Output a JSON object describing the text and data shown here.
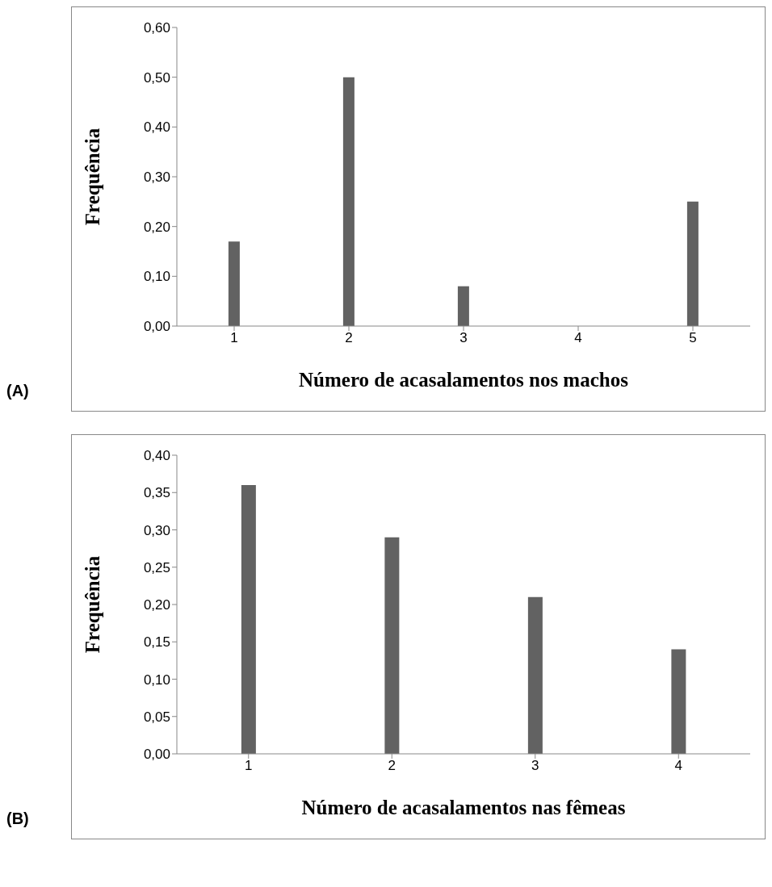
{
  "chart_data": [
    {
      "type": "bar",
      "categories": [
        "1",
        "2",
        "3",
        "4",
        "5"
      ],
      "values": [
        0.17,
        0.5,
        0.08,
        0,
        0.25
      ],
      "color": "#626262",
      "xlabel": "Número de acasalamentos nos machos",
      "ylabel": "Frequência",
      "ylim": [
        0,
        0.6
      ],
      "yticks": [
        {
          "value": 0,
          "label": "0,00"
        },
        {
          "value": 0.1,
          "label": "0,10"
        },
        {
          "value": 0.2,
          "label": "0,20"
        },
        {
          "value": 0.3,
          "label": "0,30"
        },
        {
          "value": 0.4,
          "label": "0,40"
        },
        {
          "value": 0.5,
          "label": "0,50"
        },
        {
          "value": 0.6,
          "label": "0,60"
        }
      ],
      "grid": false,
      "legend": false,
      "annotations": [
        "(A)"
      ]
    },
    {
      "type": "bar",
      "categories": [
        "1",
        "2",
        "3",
        "4"
      ],
      "values": [
        0.36,
        0.29,
        0.21,
        0.14
      ],
      "color": "#626262",
      "xlabel": "Número de acasalamentos nas fêmeas",
      "ylabel": "Frequência",
      "ylim": [
        0,
        0.4
      ],
      "yticks": [
        {
          "value": 0,
          "label": "0,00"
        },
        {
          "value": 0.05,
          "label": "0,05"
        },
        {
          "value": 0.1,
          "label": "0,10"
        },
        {
          "value": 0.15,
          "label": "0,15"
        },
        {
          "value": 0.2,
          "label": "0,20"
        },
        {
          "value": 0.25,
          "label": "0,25"
        },
        {
          "value": 0.3,
          "label": "0,30"
        },
        {
          "value": 0.35,
          "label": "0,35"
        },
        {
          "value": 0.4,
          "label": "0,40"
        }
      ],
      "grid": false,
      "legend": false,
      "annotations": [
        "(B)"
      ]
    }
  ]
}
